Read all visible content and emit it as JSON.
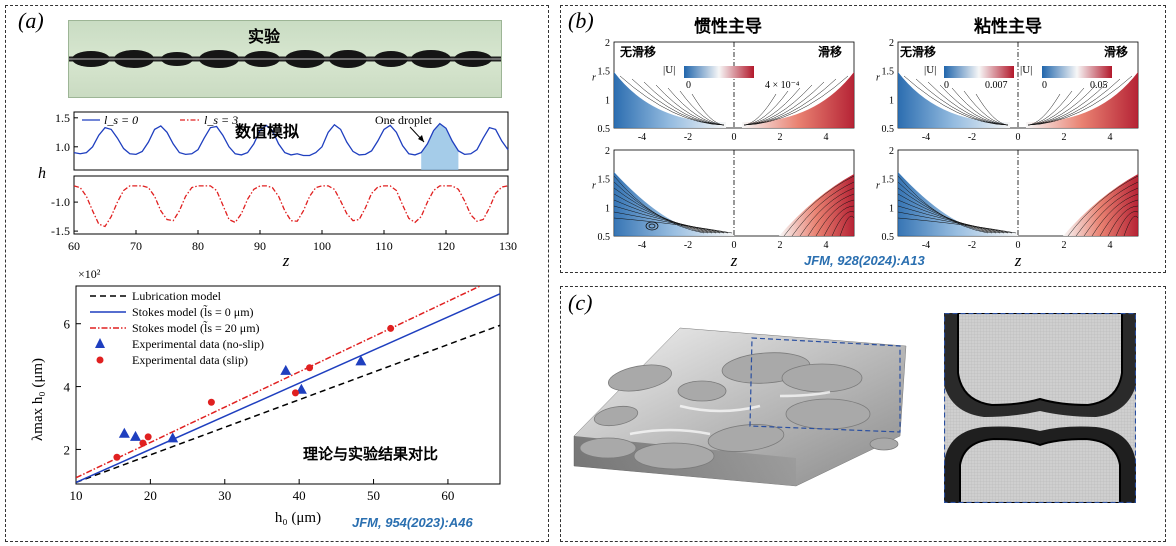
{
  "panel_a": {
    "label": "(a)",
    "experiment_label": "实验",
    "sim_label": "数值模拟",
    "compare_label": "理论与实验结果对比",
    "reference": "JFM, 954(2023):A46",
    "legend_top": {
      "noslip": "l_s = 0",
      "slip": "l_s = 3"
    },
    "droplet_label": "One droplet"
  },
  "panel_b": {
    "label": "(b)",
    "title_inertia": "惯性主导",
    "title_viscous": "粘性主导",
    "noslip": "无滑移",
    "slip": "滑移",
    "reference": "JFM, 928(2024):A13",
    "colorbar_umag": "|U|",
    "cb1_min": "0",
    "cb1_max": "4 × 10⁻⁴",
    "cb2_min": "0",
    "cb2_max": "0.007",
    "cb3_min": "0",
    "cb3_max": "0.05"
  },
  "panel_c": {
    "label": "(c)"
  },
  "colors": {
    "blue": "#1f3fbf",
    "red": "#e02020",
    "black": "#000000",
    "ref": "#2a6fb0"
  },
  "chart_data": [
    {
      "type": "line",
      "name": "profile_noslip",
      "xlabel": "z",
      "ylabel": "h",
      "x_range": [
        60,
        130
      ],
      "ylim": [
        0.6,
        1.6
      ],
      "yticks": [
        1.0,
        1.5
      ],
      "series": [
        {
          "name": "l_s = 0",
          "style": "solid",
          "color": "#1f3fbf",
          "x": [
            60,
            61,
            62,
            63,
            64,
            65,
            66,
            67,
            68,
            69,
            70,
            71,
            72,
            73,
            74,
            75,
            76,
            77,
            78,
            79,
            80,
            81,
            82,
            83,
            84,
            85,
            86,
            87,
            88,
            89,
            90,
            91,
            92,
            93,
            94,
            95,
            96,
            97,
            98,
            99,
            100,
            101,
            102,
            103,
            104,
            105,
            106,
            107,
            108,
            109,
            110,
            111,
            112,
            113,
            114,
            115,
            116,
            117,
            118,
            119,
            120,
            121,
            122,
            123,
            124,
            125,
            126,
            127,
            128,
            129,
            130
          ],
          "values": [
            0.9,
            0.88,
            0.9,
            1.0,
            1.2,
            1.33,
            1.3,
            1.15,
            0.97,
            0.88,
            0.87,
            0.92,
            1.08,
            1.3,
            1.36,
            1.25,
            1.05,
            0.9,
            0.87,
            0.88,
            0.95,
            1.15,
            1.33,
            1.35,
            1.2,
            1.0,
            0.88,
            0.86,
            0.9,
            1.05,
            1.28,
            1.37,
            1.28,
            1.05,
            0.9,
            0.86,
            0.88,
            0.85,
            0.85,
            0.9,
            1.0,
            1.25,
            1.38,
            1.3,
            1.08,
            0.92,
            0.86,
            0.87,
            0.93,
            1.1,
            1.3,
            1.37,
            1.25,
            1.02,
            0.88,
            0.86,
            0.9,
            1.05,
            1.28,
            1.4,
            1.32,
            1.1,
            0.93,
            0.87,
            0.88,
            0.95,
            1.15,
            1.33,
            1.3,
            1.1,
            0.95
          ]
        }
      ]
    },
    {
      "type": "line",
      "name": "profile_slip",
      "xlabel": "z",
      "ylabel": "h",
      "x_range": [
        60,
        130
      ],
      "ylim": [
        -1.55,
        -0.55
      ],
      "yticks": [
        -1.0,
        -1.5
      ],
      "xticks": [
        60,
        70,
        80,
        90,
        100,
        110,
        120,
        130
      ],
      "series": [
        {
          "name": "l_s = 3",
          "style": "dashdot",
          "color": "#e02020",
          "x": [
            60,
            61,
            62,
            63,
            64,
            65,
            66,
            67,
            68,
            69,
            70,
            71,
            72,
            73,
            74,
            75,
            76,
            77,
            78,
            79,
            80,
            81,
            82,
            83,
            84,
            85,
            86,
            87,
            88,
            89,
            90,
            91,
            92,
            93,
            94,
            95,
            96,
            97,
            98,
            99,
            100,
            101,
            102,
            103,
            104,
            105,
            106,
            107,
            108,
            109,
            110,
            111,
            112,
            113,
            114,
            115,
            116,
            117,
            118,
            119,
            120,
            121,
            122,
            123,
            124,
            125,
            126,
            127,
            128,
            129,
            130
          ],
          "values": [
            -0.72,
            -0.75,
            -0.9,
            -1.15,
            -1.38,
            -1.42,
            -1.25,
            -1.0,
            -0.8,
            -0.72,
            -0.72,
            -0.72,
            -0.75,
            -0.9,
            -1.15,
            -1.3,
            -1.32,
            -1.15,
            -0.9,
            -0.75,
            -0.72,
            -0.72,
            -0.72,
            -0.8,
            -1.05,
            -1.3,
            -1.35,
            -1.2,
            -0.95,
            -0.78,
            -0.72,
            -0.72,
            -0.75,
            -0.9,
            -1.15,
            -1.32,
            -1.33,
            -1.15,
            -0.9,
            -0.75,
            -0.72,
            -0.72,
            -0.78,
            -0.98,
            -1.2,
            -1.32,
            -1.3,
            -1.1,
            -0.85,
            -0.74,
            -0.72,
            -0.72,
            -0.8,
            -1.05,
            -1.28,
            -1.35,
            -1.25,
            -1.0,
            -0.8,
            -0.72,
            -0.72,
            -0.72,
            -0.78,
            -0.98,
            -1.22,
            -1.33,
            -1.3,
            -1.1,
            -0.85,
            -0.74,
            -0.72
          ]
        }
      ]
    },
    {
      "type": "scatter",
      "name": "wavelength_vs_radius",
      "title": "",
      "xlabel": "h₀ (μm)",
      "ylabel": "λmax h₀ (μm)",
      "x_multiplier_label": "×10²",
      "xlim": [
        10,
        67
      ],
      "ylim": [
        0.9,
        7.2
      ],
      "xticks": [
        10,
        20,
        30,
        40,
        50,
        60
      ],
      "yticks": [
        2,
        4,
        6
      ],
      "legend_position": "top-left",
      "series": [
        {
          "name": "Lubrication model",
          "kind": "line",
          "style": "dashed",
          "color": "#000000",
          "x": [
            10,
            67
          ],
          "values": [
            0.95,
            5.95
          ]
        },
        {
          "name": "Stokes model (l̃s = 0 μm)",
          "kind": "line",
          "style": "solid",
          "color": "#1f3fbf",
          "x": [
            10,
            67
          ],
          "values": [
            0.95,
            6.95
          ]
        },
        {
          "name": "Stokes model (l̃s = 20 μm)",
          "kind": "line",
          "style": "dashdot",
          "color": "#e02020",
          "x": [
            10,
            67
          ],
          "values": [
            1.1,
            7.5
          ]
        },
        {
          "name": "Experimental data (no-slip)",
          "kind": "triangle",
          "color": "#1f3fbf",
          "x": [
            16.5,
            18,
            23,
            38.2,
            40.3,
            48.3
          ],
          "values": [
            2.5,
            2.4,
            2.35,
            4.5,
            3.9,
            4.8
          ]
        },
        {
          "name": "Experimental data (slip)",
          "kind": "circle",
          "color": "#e02020",
          "x": [
            15.5,
            19,
            19.7,
            28.2,
            39.5,
            41.4,
            52.3
          ],
          "values": [
            1.75,
            2.2,
            2.4,
            3.5,
            3.8,
            4.6,
            5.85
          ]
        }
      ]
    }
  ]
}
